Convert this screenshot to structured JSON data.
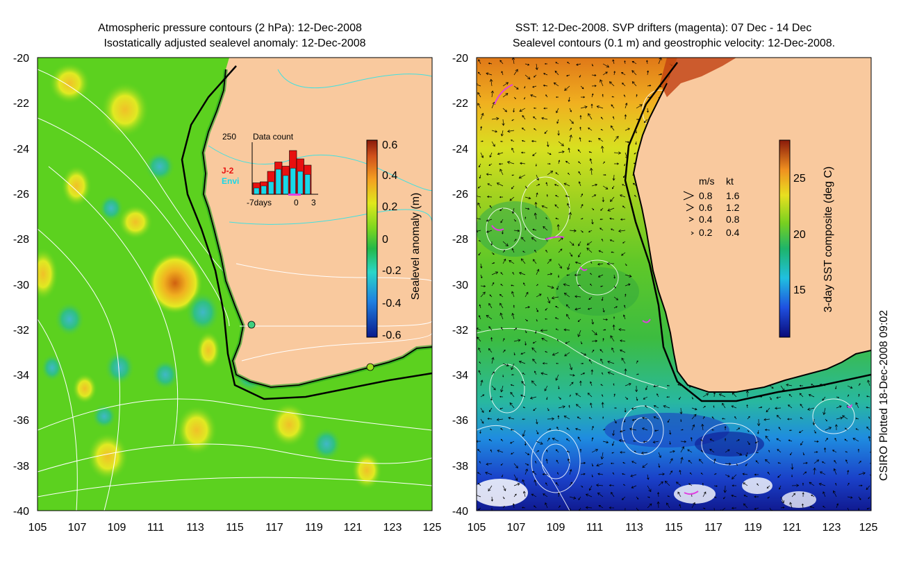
{
  "left_panel": {
    "title_line1": "Atmospheric pressure contours (2 hPa): 12-Dec-2008",
    "title_line2": "Isostatically adjusted sealevel anomaly: 12-Dec-2008",
    "x_ticks": [
      "105",
      "107",
      "109",
      "111",
      "113",
      "115",
      "117",
      "119",
      "121",
      "123",
      "125"
    ],
    "y_ticks": [
      "-20",
      "-22",
      "-24",
      "-26",
      "-28",
      "-30",
      "-32",
      "-34",
      "-36",
      "-38",
      "-40"
    ],
    "colorbar_label": "Sealevel anomaly (m)",
    "colorbar_ticks": [
      "0.6",
      "0.4",
      "0.2",
      "0",
      "-0.2",
      "-0.4",
      "-0.6"
    ],
    "inset": {
      "count_max": "250",
      "title": "Data count",
      "legend_j2": "J-2",
      "legend_envi": "Envi",
      "x_left": "-7days",
      "x_zero": "0",
      "x_right": "3",
      "j2_counts": [
        55,
        60,
        110,
        155,
        135,
        210,
        170,
        140
      ],
      "envi_counts": [
        30,
        40,
        60,
        120,
        90,
        125,
        110,
        95
      ]
    }
  },
  "right_panel": {
    "title_line1": "SST: 12-Dec-2008. SVP drifters (magenta): 07 Dec - 14 Dec",
    "title_line2": "Sealevel contours (0.1 m) and geostrophic velocity: 12-Dec-2008.",
    "x_ticks": [
      "105",
      "107",
      "109",
      "111",
      "113",
      "115",
      "117",
      "119",
      "121",
      "123",
      "125"
    ],
    "y_ticks": [
      "-20",
      "-22",
      "-24",
      "-26",
      "-28",
      "-30",
      "-32",
      "-34",
      "-36",
      "-38",
      "-40"
    ],
    "colorbar_label": "3-day SST composite (deg C)",
    "colorbar_ticks": [
      "25",
      "20",
      "15"
    ],
    "velocity_legend": {
      "header_ms": "m/s",
      "header_kt": "kt",
      "rows": [
        {
          "ms": "0.8",
          "kt": "1.6"
        },
        {
          "ms": "0.6",
          "kt": "1.2"
        },
        {
          "ms": "0.4",
          "kt": "0.8"
        },
        {
          "ms": "0.2",
          "kt": "0.4"
        }
      ]
    },
    "credit": "CSIRO Plotted 18-Dec-2008 09:02"
  },
  "colors": {
    "land": "#f9c99e",
    "ocean_green": "#5cd11f",
    "coast": "#000000",
    "j2": "#e81010",
    "envi": "#18d8e8",
    "drifter": "#e040e0"
  }
}
